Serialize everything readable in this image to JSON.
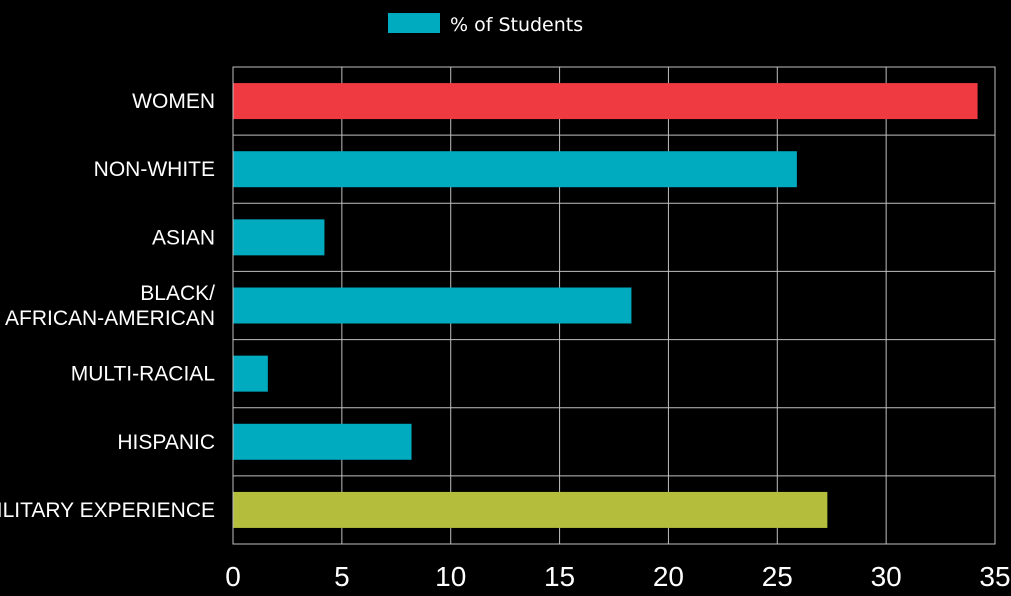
{
  "chart_data": {
    "type": "bar",
    "orientation": "horizontal",
    "categories": [
      [
        "WOMEN"
      ],
      [
        "NON-WHITE"
      ],
      [
        "ASIAN"
      ],
      [
        "BLACK/",
        "AFRICAN-AMERICAN"
      ],
      [
        "MULTI-RACIAL"
      ],
      [
        "HISPANIC"
      ],
      [
        "MILITARY EXPERIENCE"
      ]
    ],
    "series": [
      {
        "name": "% of Students",
        "values": [
          34.2,
          25.9,
          4.2,
          18.3,
          1.6,
          8.2,
          27.3
        ]
      }
    ],
    "bar_colors": [
      "#ef3a42",
      "#00abc0",
      "#00abc0",
      "#00abc0",
      "#00abc0",
      "#00abc0",
      "#b5bd3c"
    ],
    "legend_color": "#00abc0",
    "xlim": [
      0,
      35
    ],
    "xticks": [
      0,
      5,
      10,
      15,
      20,
      25,
      30,
      35
    ],
    "title": "",
    "xlabel": "",
    "ylabel": "",
    "grid": true,
    "legend_position": "top-center",
    "background": "#000000",
    "grid_color": "#bfbfbf"
  }
}
